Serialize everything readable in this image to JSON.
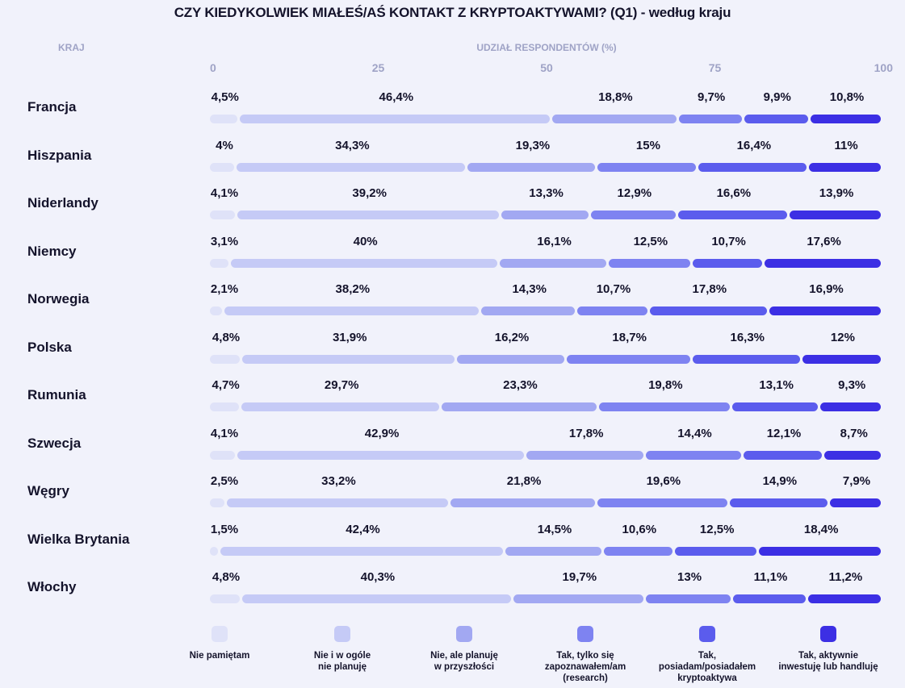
{
  "chart_data": {
    "type": "bar",
    "stacked": true,
    "orientation": "horizontal",
    "title": "CZY KIEDYKOLWIEK MIAŁEŚ/AŚ KONTAKT Z KRYPTOAKTYWAMI? (Q1) - według kraju",
    "category_header": "KRAJ",
    "xlabel": "UDZIAŁ RESPONDENTÓW (%)",
    "xlim": [
      0,
      100
    ],
    "xticks": [
      "0",
      "25",
      "50",
      "75",
      "100"
    ],
    "value_suffix": "%",
    "categories": [
      "Francja",
      "Hiszpania",
      "Niderlandy",
      "Niemcy",
      "Norwegia",
      "Polska",
      "Rumunia",
      "Szwecja",
      "Węgry",
      "Wielka Brytania",
      "Włochy"
    ],
    "series": [
      {
        "name": "Nie pamiętam",
        "color": "#dfe2f8",
        "values": [
          "4,5",
          "4",
          "4,1",
          "3,1",
          "2,1",
          "4,8",
          "4,7",
          "4,1",
          "2,5",
          "1,5",
          "4,8"
        ]
      },
      {
        "name": "Nie i w ogóle\nnie planuję",
        "color": "#c5caf6",
        "values": [
          "46,4",
          "34,3",
          "39,2",
          "40",
          "38,2",
          "31,9",
          "29,7",
          "42,9",
          "33,2",
          "42,4",
          "40,3"
        ]
      },
      {
        "name": "Nie, ale planuję\nw przyszłości",
        "color": "#a2a8f2",
        "values": [
          "18,8",
          "19,3",
          "13,3",
          "16,1",
          "14,3",
          "16,2",
          "23,3",
          "17,8",
          "21,8",
          "14,5",
          "19,7"
        ]
      },
      {
        "name": "Tak, tylko się\nzapoznawałem/am\n(research)",
        "color": "#7e83f1",
        "values": [
          "9,7",
          "15",
          "12,9",
          "12,5",
          "10,7",
          "18,7",
          "19,8",
          "14,4",
          "19,6",
          "10,6",
          "13"
        ]
      },
      {
        "name": "Tak,\nposiadam/posiadałem\nkryptoaktywa",
        "color": "#5b5ced",
        "values": [
          "9,9",
          "16,4",
          "16,6",
          "10,7",
          "17,8",
          "16,3",
          "13,1",
          "12,1",
          "14,9",
          "12,5",
          "11,1"
        ]
      },
      {
        "name": "Tak, aktywnie\ninwestuję lub handluję",
        "color": "#3c2fe4",
        "values": [
          "10,8",
          "11",
          "13,9",
          "17,6",
          "16,9",
          "12",
          "9,3",
          "8,7",
          "7,9",
          "18,4",
          "11,2"
        ]
      }
    ]
  }
}
